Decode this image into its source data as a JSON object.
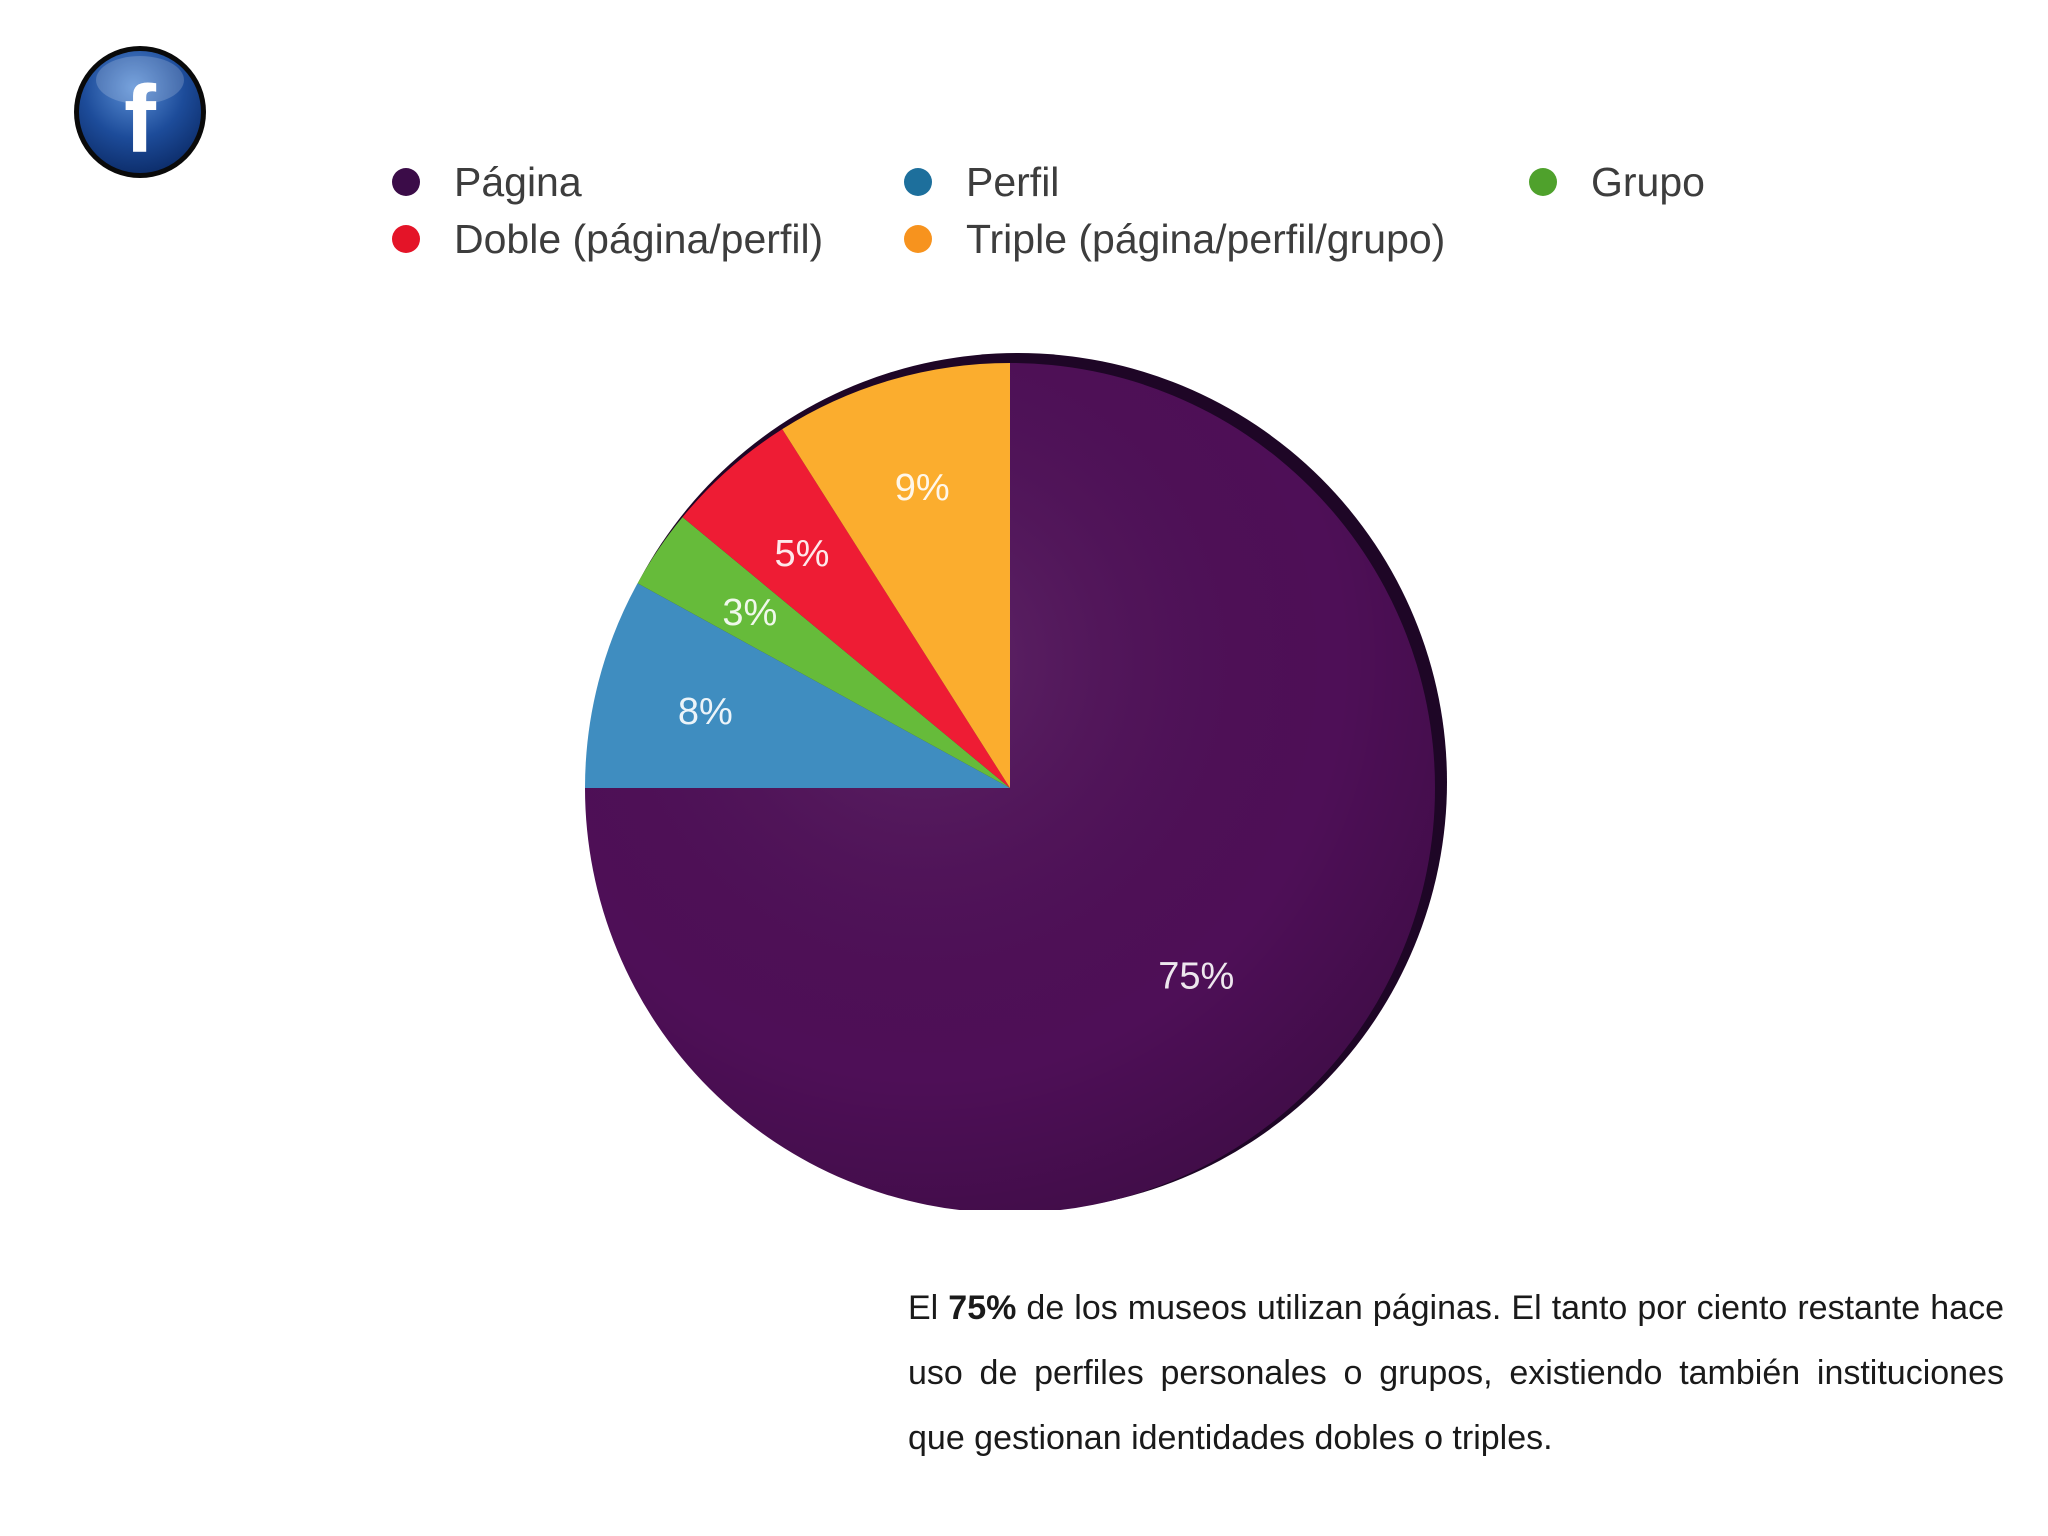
{
  "logo": {
    "icon": "facebook-icon",
    "glyph": "f"
  },
  "chart_data": {
    "type": "pie",
    "categories": [
      "Página",
      "Perfil",
      "Grupo",
      "Doble (página/perfil)",
      "Triple (página/perfil/grupo)"
    ],
    "values": [
      75,
      8,
      3,
      5,
      9
    ],
    "labels": [
      "75%",
      "8%",
      "3%",
      "5%",
      "9%"
    ],
    "colors": [
      "#4e0f57",
      "#3f8dc0",
      "#66bb3a",
      "#ee1c34",
      "#fbad2e"
    ],
    "legend_placement": "top",
    "slice_order_clockwise_from_top": [
      "Página",
      "Perfil",
      "Grupo",
      "Doble (página/perfil)",
      "Triple (página/perfil/grupo)"
    ]
  },
  "legend": [
    {
      "label": "Página",
      "color": "#3b0c48"
    },
    {
      "label": "Perfil",
      "color": "#1d6f9c"
    },
    {
      "label": "Grupo",
      "color": "#4fa12c"
    },
    {
      "label": "Doble (página/perfil)",
      "color": "#e41428"
    },
    {
      "label": "Triple (página/perfil/grupo)",
      "color": "#f7931e"
    }
  ],
  "caption": {
    "prefix": "El ",
    "bold": "75%",
    "rest": " de los museos utilizan páginas. El tanto por ciento restante hace uso de perfiles personales o grupos, existiendo también instituciones que gestionan identidades dobles o triples."
  }
}
